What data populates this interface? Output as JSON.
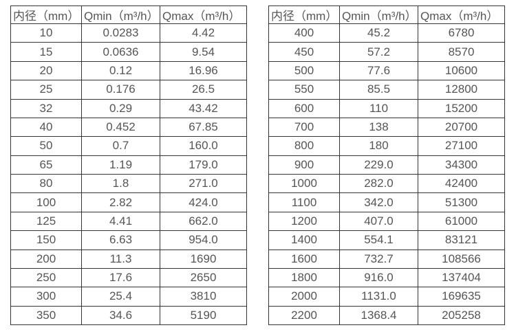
{
  "page": {
    "background_color": "#ffffff",
    "text_color": "#555555",
    "border_color": "#333333"
  },
  "tables": [
    {
      "name": "flow-spec-small-diameters",
      "headers": [
        "内径（mm）",
        "Qmin（m³/h）",
        "Qmax（m³/h）"
      ],
      "rows": [
        [
          "10",
          "0.0283",
          "4.42"
        ],
        [
          "15",
          "0.0636",
          "9.54"
        ],
        [
          "20",
          "0.12",
          "16.96"
        ],
        [
          "25",
          "0.176",
          "26.5"
        ],
        [
          "32",
          "0.29",
          "43.42"
        ],
        [
          "40",
          "0.452",
          "67.85"
        ],
        [
          "50",
          "0.7",
          "160.0"
        ],
        [
          "65",
          "1.19",
          "179.0"
        ],
        [
          "80",
          "1.8",
          "271.0"
        ],
        [
          "100",
          "2.82",
          "424.0"
        ],
        [
          "125",
          "4.41",
          "662.0"
        ],
        [
          "150",
          "6.63",
          "954.0"
        ],
        [
          "200",
          "11.3",
          "1690"
        ],
        [
          "250",
          "17.6",
          "2650"
        ],
        [
          "300",
          "25.4",
          "3810"
        ],
        [
          "350",
          "34.6",
          "5190"
        ]
      ]
    },
    {
      "name": "flow-spec-large-diameters",
      "headers": [
        "内径（mm）",
        "Qmin（m³/h）",
        "Qmax（m³/h）"
      ],
      "rows": [
        [
          "400",
          "45.2",
          "6780"
        ],
        [
          "450",
          "57.2",
          "8570"
        ],
        [
          "500",
          "77.6",
          "10600"
        ],
        [
          "550",
          "85.5",
          "12800"
        ],
        [
          "600",
          "110",
          "15200"
        ],
        [
          "700",
          "138",
          "20700"
        ],
        [
          "800",
          "180",
          "27100"
        ],
        [
          "900",
          "229.0",
          "34300"
        ],
        [
          "1000",
          "282.0",
          "42400"
        ],
        [
          "1100",
          "342.0",
          "51300"
        ],
        [
          "1200",
          "407.0",
          "61000"
        ],
        [
          "1400",
          "554.1",
          "83121"
        ],
        [
          "1600",
          "732.7",
          "108566"
        ],
        [
          "1800",
          "916.0",
          "137404"
        ],
        [
          "2000",
          "1131.0",
          "169635"
        ],
        [
          "2200",
          "1368.4",
          "205258"
        ]
      ]
    }
  ],
  "column_semantics": [
    "inner-diameter-mm",
    "qmin-m3h",
    "qmax-m3h"
  ]
}
